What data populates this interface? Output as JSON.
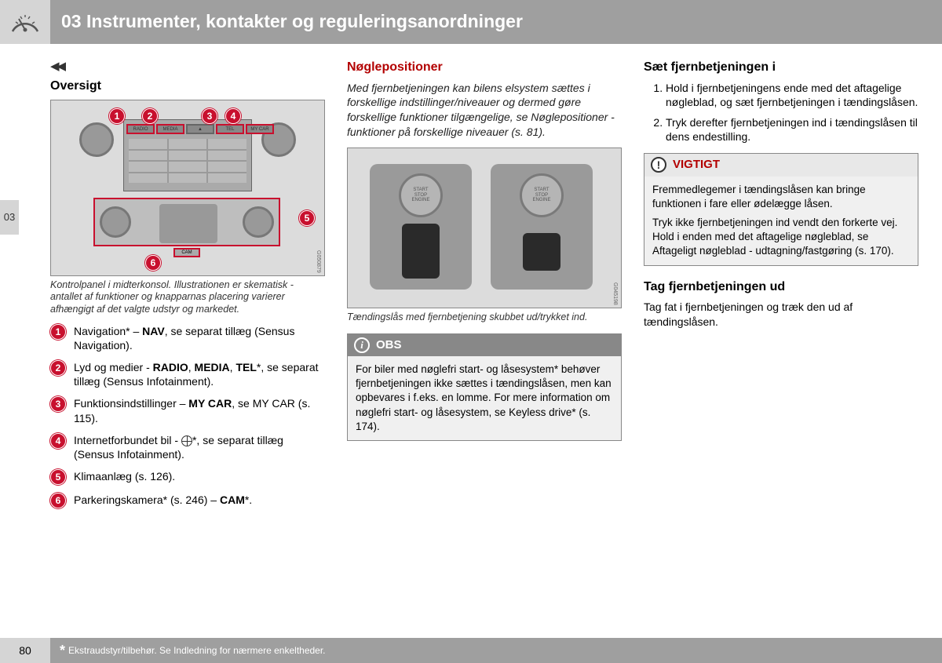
{
  "colors": {
    "header_bg": "#9f9f9f",
    "icon_panel_bg": "#d5d5d5",
    "accent_red": "#b30000",
    "badge_red": "#c8102e",
    "callout_gray": "#888888",
    "body_bg": "#ffffff",
    "text": "#000000"
  },
  "header": {
    "chapter_number": "03",
    "title": "03 Instrumenter, kontakter og reguleringsanordninger"
  },
  "side_tab": "03",
  "continuation_marker": "◀◀",
  "col1": {
    "heading": "Oversigt",
    "figure": {
      "badges": [
        "1",
        "2",
        "3",
        "4",
        "5",
        "6"
      ],
      "top_buttons": [
        "RADIO",
        "MEDIA",
        "TEL",
        "MY CAR"
      ],
      "code": "G050879"
    },
    "caption": "Kontrolpanel i midterkonsol. Illustrationen er skematisk - antallet af funktioner og knapparnas placering varierer afhængigt af det valgte udstyr og markedet.",
    "items": [
      {
        "n": "1",
        "html": "Navigation* – <b>NAV</b>, se separat tillæg (Sensus Navigation)."
      },
      {
        "n": "2",
        "html": "Lyd og medier - <b>RADIO</b>, <b>MEDIA</b>, <b>TEL</b>*, se separat tillæg (Sensus Infotainment)."
      },
      {
        "n": "3",
        "html": "Funktionsindstillinger – <b>MY CAR</b>, se MY CAR (s. 115)."
      },
      {
        "n": "4",
        "html": "Internetforbundet bil - <span class='globe-icon'></span>*, se separat tillæg (Sensus Infotainment)."
      },
      {
        "n": "5",
        "html": "Klimaanlæg (s. 126)."
      },
      {
        "n": "6",
        "html": "Parkeringskamera* (s. 246) – <b>CAM</b>*."
      }
    ]
  },
  "col2": {
    "heading": "Nøglepositioner",
    "intro": "Med fjernbetjeningen kan bilens elsystem sættes i forskellige indstillinger/niveauer og dermed gøre forskellige funktioner tilgængelige, se Nøglepositioner - funktioner på forskellige niveauer (s. 81).",
    "figure": {
      "button_label": "START\nSTOP\nENGINE",
      "code": "G045198"
    },
    "caption": "Tændingslås med fjernbetjening skubbet ud/trykket ind.",
    "callout": {
      "title": "OBS",
      "body": "For biler med nøglefri start- og låsesystem* behøver fjernbetjeningen ikke sættes i tændingslåsen, men kan opbevares i f.eks. en lomme. For mere information om nøglefri start- og låsesystem, se Keyless drive* (s. 174)."
    }
  },
  "col3": {
    "heading1": "Sæt fjernbetjeningen i",
    "steps": [
      "Hold i fjernbetjeningens ende med det aftagelige nøgleblad, og sæt fjernbetjeningen i tændingslåsen.",
      "Tryk derefter fjernbetjeningen ind i tændingslåsen til dens endestilling."
    ],
    "callout": {
      "title": "VIGTIGT",
      "p1": "Fremmedlegemer i tændingslåsen kan bringe funktionen i fare eller ødelægge låsen.",
      "p2": "Tryk ikke fjernbetjeningen ind vendt den forkerte vej. Hold i enden med det aftagelige nøgleblad, se Aftageligt nøgleblad - udtagning/fastgøring (s. 170)."
    },
    "heading2": "Tag fjernbetjeningen ud",
    "para2": "Tag fat i fjernbetjeningen og træk den ud af tændingslåsen."
  },
  "footer": {
    "page": "80",
    "star": "*",
    "text": "Ekstraudstyr/tilbehør. Se Indledning for nærmere enkeltheder."
  }
}
